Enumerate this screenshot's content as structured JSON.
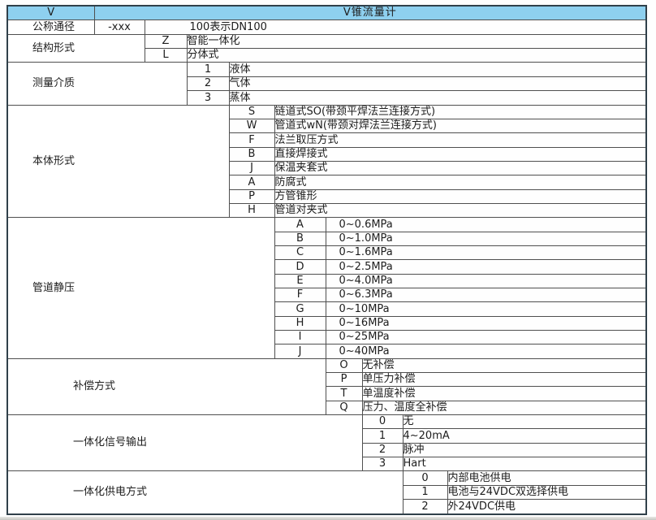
{
  "colors": {
    "header_bg": "#8ed0ef",
    "grid_border": "#4f4f4f",
    "outer_border": "#30404a",
    "text": "#1d1d1d"
  },
  "header": {
    "code": "V",
    "title": "V锥流量计"
  },
  "sections": [
    {
      "label": "公称通径",
      "rows": [
        {
          "code": "-xxx",
          "desc": "100表示DN100"
        }
      ]
    },
    {
      "label": "结构形式",
      "rows": [
        {
          "code": "Z",
          "desc": "智能一体化"
        },
        {
          "code": "L",
          "desc": "分体式"
        }
      ]
    },
    {
      "label": "测量介质",
      "rows": [
        {
          "code": "1",
          "desc": "液体"
        },
        {
          "code": "2",
          "desc": "气体"
        },
        {
          "code": "3",
          "desc": "蒸体"
        }
      ]
    },
    {
      "label": "本体形式",
      "rows": [
        {
          "code": "S",
          "desc": "链道式SO(带颈平焊法兰连接方式)"
        },
        {
          "code": "W",
          "desc": "管道式wN(带颈对焊法兰连接方式)"
        },
        {
          "code": "F",
          "desc": "法兰取压方式"
        },
        {
          "code": "B",
          "desc": "直接焊接式"
        },
        {
          "code": "J",
          "desc": "保温夹套式"
        },
        {
          "code": "A",
          "desc": "防腐式"
        },
        {
          "code": "P",
          "desc": "方管锥形"
        },
        {
          "code": "H",
          "desc": "管道对夹式"
        }
      ]
    },
    {
      "label": "管道静压",
      "rows": [
        {
          "code": "A",
          "desc": "0~0.6MPa"
        },
        {
          "code": "B",
          "desc": "0~1.0MPa"
        },
        {
          "code": "C",
          "desc": "0~1.6MPa"
        },
        {
          "code": "D",
          "desc": "0~2.5MPa"
        },
        {
          "code": "E",
          "desc": "0~4.0MPa"
        },
        {
          "code": "F",
          "desc": "0~6.3MPa"
        },
        {
          "code": "G",
          "desc": "0~10MPa"
        },
        {
          "code": "H",
          "desc": "0~16MPa"
        },
        {
          "code": "I",
          "desc": "0~25MPa"
        },
        {
          "code": "J",
          "desc": "0~40MPa"
        }
      ]
    },
    {
      "label": "补偿方式",
      "rows": [
        {
          "code": "O",
          "desc": "无补偿"
        },
        {
          "code": "P",
          "desc": "单压力补偿"
        },
        {
          "code": "T",
          "desc": "单温度补偿"
        },
        {
          "code": "Q",
          "desc": "压力、温度全补偿"
        }
      ]
    },
    {
      "label": "一体化信号输出",
      "rows": [
        {
          "code": "0",
          "desc": "无"
        },
        {
          "code": "1",
          "desc": "4~20mA"
        },
        {
          "code": "2",
          "desc": "脉冲"
        },
        {
          "code": "3",
          "desc": "Hart"
        }
      ]
    },
    {
      "label": "一体化供电方式",
      "rows": [
        {
          "code": "0",
          "desc": "内部电池供电"
        },
        {
          "code": "1",
          "desc": "电池与24VDC双选择供电"
        },
        {
          "code": "2",
          "desc": "外24VDC供电"
        }
      ]
    }
  ]
}
